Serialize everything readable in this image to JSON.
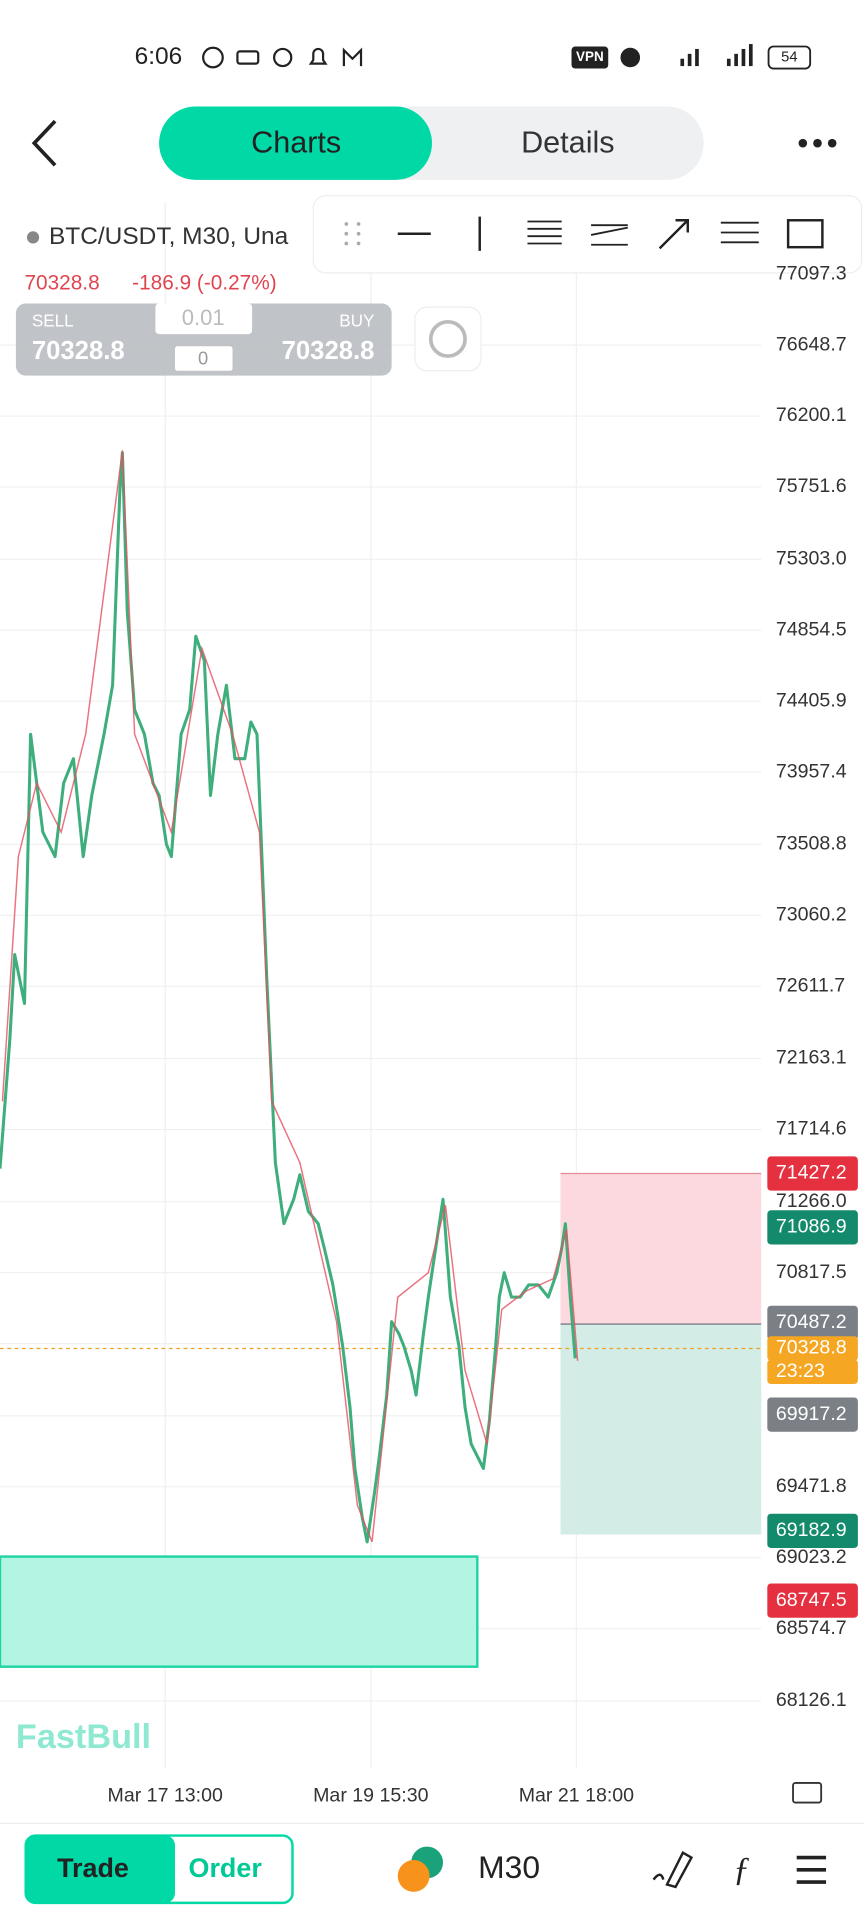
{
  "status_bar": {
    "time": "6:06",
    "vpn": "VPN",
    "battery": "54"
  },
  "nav": {
    "tabs": [
      "Charts",
      "Details"
    ]
  },
  "symbol": {
    "name": "BTC/USDT, M30, Una",
    "price": "70328.8",
    "change": "-186.9 (-0.27%)"
  },
  "trade_panel": {
    "sell_label": "SELL",
    "sell_price": "70328.8",
    "buy_label": "BUY",
    "buy_price": "70328.8",
    "lot": "0.01",
    "count": "0"
  },
  "price_axis": [
    "77097.3",
    "76648.7",
    "76200.1",
    "75751.6",
    "75303.0",
    "74854.5",
    "74405.9",
    "73957.4",
    "73508.8",
    "73060.2",
    "72611.7",
    "72163.1",
    "71714.6",
    "71266.0",
    "70817.5",
    "69471.8",
    "69023.2",
    "68574.7",
    "68126.1"
  ],
  "price_tags": [
    "71427.2",
    "71086.9",
    "70487.2",
    "70328.8",
    "23:23",
    "69917.2",
    "69182.9",
    "68747.5"
  ],
  "time_axis": [
    "Mar 17 13:00",
    "Mar 19 15:30",
    "Mar 21 18:00"
  ],
  "watermark": "FastBull",
  "bottom_bar": {
    "trade": "Trade",
    "order": "Order",
    "timeframe": "M30"
  }
}
